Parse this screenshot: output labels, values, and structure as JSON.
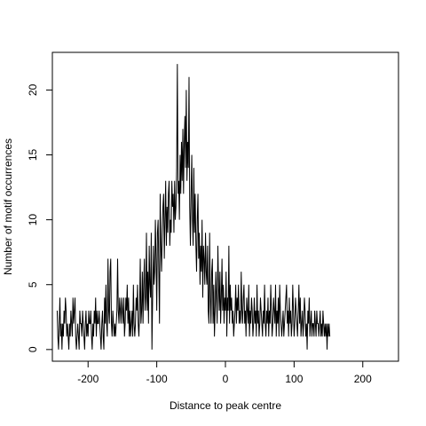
{
  "chart_data": {
    "type": "line",
    "title": "",
    "xlabel": "Distance to peak centre",
    "ylabel": "Number of motif occurrences",
    "xlim": [
      -252,
      252
    ],
    "ylim": [
      -0.9,
      22.9
    ],
    "x_ticks": [
      -200,
      -100,
      0,
      100,
      200
    ],
    "y_ticks": [
      0,
      5,
      10,
      15,
      20
    ],
    "x_tick_labels": [
      "-200",
      "-100",
      "0",
      "100",
      "200"
    ],
    "y_tick_labels": [
      "0",
      "5",
      "10",
      "15",
      "20"
    ],
    "x_start": -245,
    "x_step": 1,
    "grid": false,
    "legend": "none",
    "line_color": "#000000",
    "series": [
      {
        "values": [
          3,
          1,
          0,
          2,
          4,
          1,
          2,
          0,
          2,
          1,
          3,
          2,
          4,
          3,
          1,
          2,
          1,
          0,
          2,
          1,
          3,
          2,
          1,
          4,
          2,
          3,
          4,
          1,
          0,
          1,
          2,
          1,
          0,
          3,
          2,
          2,
          1,
          3,
          2,
          1,
          0,
          2,
          3,
          1,
          2,
          1,
          3,
          2,
          2,
          3,
          1,
          0,
          2,
          1,
          3,
          2,
          4,
          1,
          3,
          2,
          2,
          3,
          2,
          1,
          0,
          2,
          3,
          1,
          0,
          4,
          2,
          5,
          2,
          1,
          7,
          3,
          2,
          6,
          7,
          2,
          1,
          3,
          2,
          1,
          2,
          1,
          2,
          3,
          7,
          3,
          2,
          4,
          3,
          2,
          4,
          3,
          2,
          4,
          1,
          2,
          4,
          3,
          5,
          2,
          4,
          1,
          3,
          1,
          2,
          3,
          1,
          5,
          2,
          1,
          2,
          4,
          3,
          5,
          2,
          1,
          3,
          7,
          2,
          3,
          6,
          2,
          5,
          7,
          3,
          4,
          9,
          3,
          6,
          2,
          8,
          5,
          4,
          9,
          0,
          4,
          8,
          5,
          6,
          10,
          7,
          3,
          9,
          10,
          6,
          2,
          12,
          8,
          6,
          9,
          11,
          12,
          7,
          10,
          13,
          8,
          11,
          9,
          12,
          13,
          8,
          10,
          9,
          13,
          11,
          12,
          9,
          13,
          10,
          11,
          14,
          22,
          12,
          13,
          10,
          15,
          12,
          16,
          13,
          17,
          12,
          16,
          18,
          14,
          20,
          13,
          16,
          14,
          21,
          11,
          8,
          12,
          15,
          10,
          8,
          14,
          9,
          12,
          8,
          6,
          10,
          12,
          7,
          9,
          5,
          8,
          6,
          10,
          4,
          8,
          7,
          5,
          9,
          6,
          5,
          8,
          3,
          2,
          9,
          4,
          2,
          6,
          7,
          2,
          5,
          1,
          3,
          6,
          4,
          2,
          8,
          5,
          3,
          6,
          2,
          4,
          7,
          3,
          5,
          2,
          4,
          3,
          6,
          1,
          4,
          3,
          8,
          2,
          5,
          3,
          4,
          2,
          3,
          1,
          2,
          3,
          5,
          2,
          4,
          3,
          5,
          2,
          3,
          2,
          6,
          3,
          2,
          4,
          5,
          2,
          3,
          1,
          4,
          3,
          2,
          5,
          1,
          3,
          2,
          4,
          3,
          1,
          2,
          4,
          2,
          3,
          1,
          5,
          2,
          3,
          1,
          2,
          4,
          3,
          2,
          1,
          3,
          2,
          5,
          2,
          1,
          3,
          2,
          4,
          1,
          3,
          2,
          5,
          3,
          1,
          2,
          4,
          3,
          2,
          5,
          1,
          3,
          2,
          4,
          1,
          5,
          3,
          2,
          1,
          2,
          3,
          1,
          2,
          3,
          4,
          5,
          2,
          3,
          1,
          4,
          2,
          3,
          1,
          2,
          5,
          3,
          1,
          2,
          4,
          3,
          2,
          1,
          3,
          5,
          2,
          4,
          1,
          2,
          3,
          1,
          2,
          4,
          3,
          1,
          2,
          0,
          3,
          2,
          4,
          1,
          2,
          3,
          1,
          2,
          2,
          1,
          3,
          2,
          1,
          3,
          2,
          2,
          1,
          2,
          3,
          1,
          2,
          1,
          3,
          2,
          1,
          2,
          1,
          2,
          0,
          2,
          1,
          2,
          1
        ]
      }
    ]
  }
}
